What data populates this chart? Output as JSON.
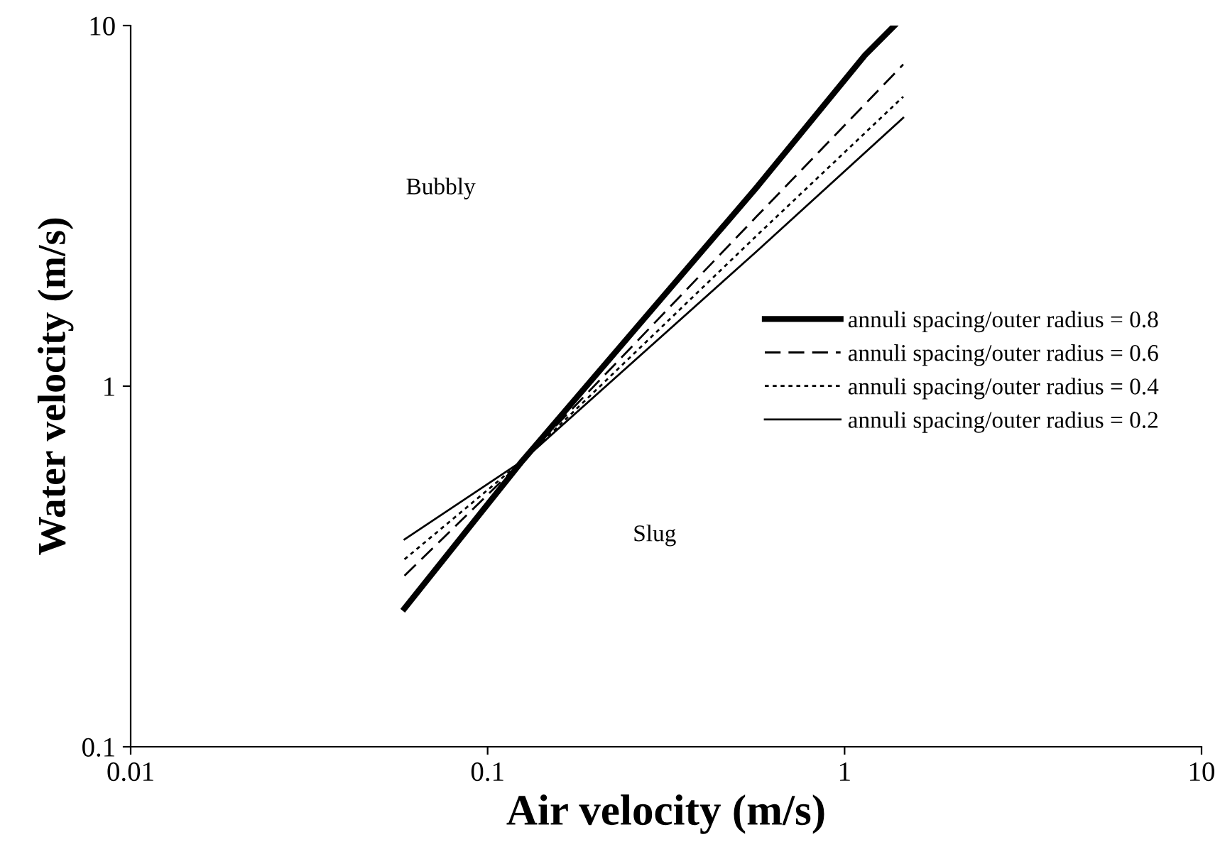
{
  "chart_data": {
    "type": "line",
    "xlabel": "Air velocity (m/s)",
    "ylabel": "Water velocity (m/s)",
    "log": "xy",
    "xlim": [
      0.01,
      10
    ],
    "ylim": [
      0.1,
      10
    ],
    "xticks": [
      0.01,
      0.1,
      1,
      10
    ],
    "yticks": [
      0.1,
      1,
      10
    ],
    "grid": false,
    "legend": "right",
    "marker": "none",
    "series": [
      {
        "name": "annuli spacing/outer radius = 0.8",
        "color": "#000000",
        "line_style": "solid",
        "x": [
          0.0585,
          0.125,
          0.566,
          1.14,
          1.38
        ],
        "values": [
          0.242,
          0.62,
          3.55,
          8.27,
          10
        ]
      },
      {
        "name": "annuli spacing/outer radius = 0.6",
        "color": "#000000",
        "line_style": "dashed",
        "x": [
          0.0585,
          0.125,
          0.566,
          1.46
        ],
        "values": [
          0.298,
          0.62,
          2.95,
          7.8
        ]
      },
      {
        "name": "annuli spacing/outer radius = 0.4",
        "color": "#000000",
        "line_style": "dotted",
        "x": [
          0.0585,
          0.125,
          0.566,
          1.46
        ],
        "values": [
          0.331,
          0.62,
          2.61,
          6.35
        ]
      },
      {
        "name": "annuli spacing/outer radius = 0.2",
        "color": "#000000",
        "line_style": "solid",
        "x": [
          0.0585,
          0.125,
          0.566,
          1.46
        ],
        "values": [
          0.376,
          0.62,
          2.36,
          5.55
        ]
      }
    ],
    "annotations": [
      "Bubbly",
      "Slug"
    ]
  }
}
